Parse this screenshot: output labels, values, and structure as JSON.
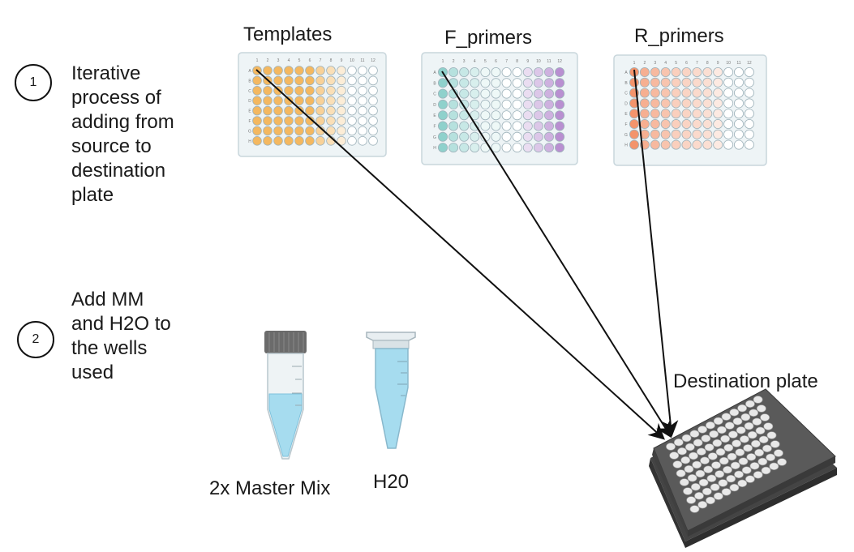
{
  "steps": [
    {
      "number": "1",
      "lines": [
        "Iterative",
        "process of",
        "adding from",
        "source to",
        "destination",
        "plate"
      ]
    },
    {
      "number": "2",
      "lines": [
        "Add MM",
        "and H2O to",
        "the wells",
        "used"
      ]
    }
  ],
  "plates": [
    {
      "label": "Templates",
      "color": "#f4b860"
    },
    {
      "label": "F_primers",
      "teal": "#8fd1cc",
      "purple": "#b98fd1"
    },
    {
      "label": "R_primers",
      "color": "#f3946c"
    }
  ],
  "destination": {
    "label": "Destination plate",
    "plate_color": "#555555",
    "well_color": "#e8e8e8"
  },
  "tubes": [
    {
      "label": "2x Master Mix",
      "liquid_color": "#a6dcef"
    },
    {
      "label": "H20",
      "liquid_color": "#a6dcef"
    }
  ],
  "plate_column_numbers": [
    "1",
    "2",
    "3",
    "4",
    "5",
    "6",
    "7",
    "8",
    "9",
    "10",
    "11",
    "12"
  ],
  "plate_row_letters": [
    "A",
    "B",
    "C",
    "D",
    "E",
    "F",
    "G",
    "H"
  ]
}
